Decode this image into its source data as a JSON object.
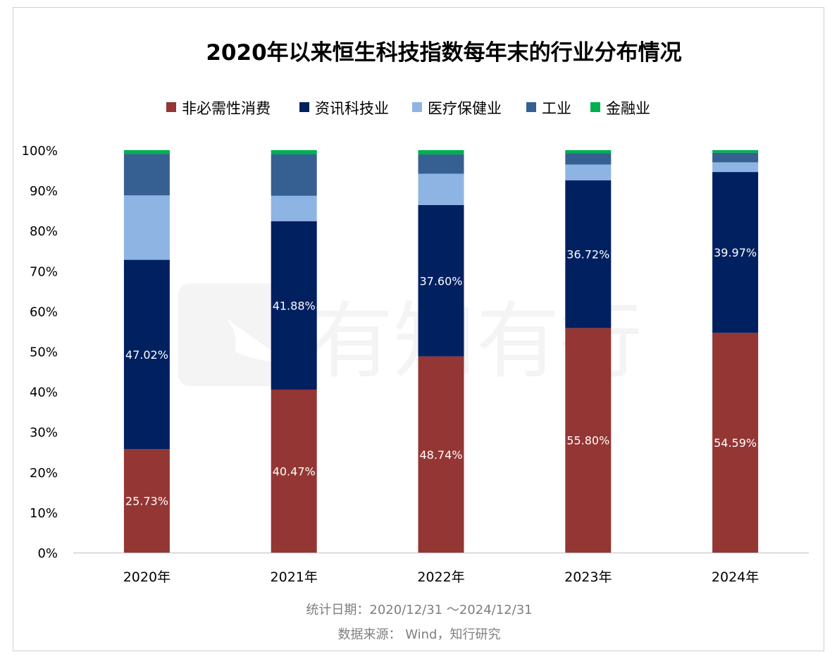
{
  "chart_data": {
    "type": "bar",
    "stacked": true,
    "title": "2020年以来恒生科技指数每年末的行业分布情况",
    "categories": [
      "2020年",
      "2021年",
      "2022年",
      "2023年",
      "2024年"
    ],
    "y_axis": {
      "min": 0,
      "max": 100,
      "unit": "%",
      "ticks": [
        "0%",
        "10%",
        "20%",
        "30%",
        "40%",
        "50%",
        "60%",
        "70%",
        "80%",
        "90%",
        "100%"
      ]
    },
    "legend_position": "top",
    "grid": false,
    "series": [
      {
        "name": "非必需性消费",
        "color": "#943634",
        "values": [
          25.73,
          40.47,
          48.74,
          55.8,
          54.59
        ],
        "labels": [
          "25.73%",
          "40.47%",
          "48.74%",
          "55.80%",
          "54.59%"
        ]
      },
      {
        "name": "资讯科技业",
        "color": "#002060",
        "values": [
          47.02,
          41.88,
          37.6,
          36.72,
          39.97
        ],
        "labels": [
          "47.02%",
          "41.88%",
          "37.60%",
          "36.72%",
          "39.97%"
        ]
      },
      {
        "name": "医疗保健业",
        "color": "#8EB4E3",
        "values": [
          16.0,
          6.3,
          7.8,
          3.9,
          2.4
        ],
        "labels": [
          "",
          "",
          "",
          "",
          ""
        ]
      },
      {
        "name": "工业",
        "color": "#376092",
        "values": [
          10.3,
          10.3,
          4.8,
          2.8,
          2.4
        ],
        "labels": [
          "",
          "",
          "",
          "",
          ""
        ]
      },
      {
        "name": "金融业",
        "color": "#00B050",
        "values": [
          0.95,
          1.05,
          1.06,
          0.78,
          0.64
        ],
        "labels": [
          "",
          "",
          "",
          "",
          ""
        ]
      }
    ],
    "notes": [
      "统计日期：2020/12/31 ～2024/12/31",
      "数据来源： Wind，知行研究"
    ]
  },
  "watermark_text": "有知有行"
}
